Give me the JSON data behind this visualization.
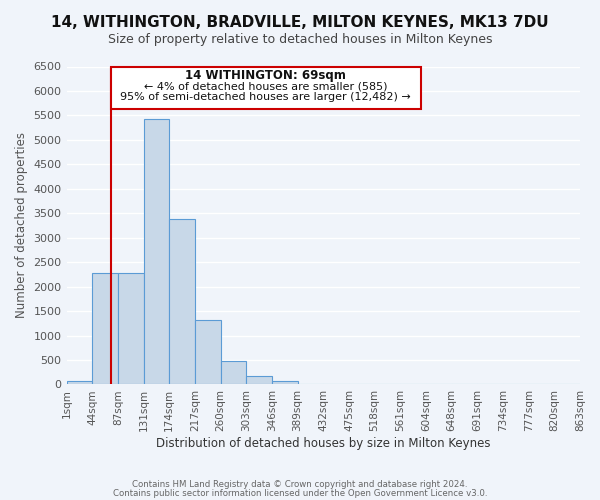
{
  "title": "14, WITHINGTON, BRADVILLE, MILTON KEYNES, MK13 7DU",
  "subtitle": "Size of property relative to detached houses in Milton Keynes",
  "xlabel": "Distribution of detached houses by size in Milton Keynes",
  "ylabel": "Number of detached properties",
  "bar_color": "#c8d8e8",
  "bar_edge_color": "#5b9bd5",
  "background_color": "#f0f4fa",
  "grid_color": "#ffffff",
  "annotation_box_color": "#ffffff",
  "annotation_border_color": "#cc0000",
  "vline_color": "#cc0000",
  "bin_labels": [
    "1sqm",
    "44sqm",
    "87sqm",
    "131sqm",
    "174sqm",
    "217sqm",
    "260sqm",
    "303sqm",
    "346sqm",
    "389sqm",
    "432sqm",
    "475sqm",
    "518sqm",
    "561sqm",
    "604sqm",
    "648sqm",
    "691sqm",
    "734sqm",
    "777sqm",
    "820sqm",
    "863sqm"
  ],
  "values": [
    70,
    2280,
    2280,
    5430,
    3380,
    1310,
    480,
    170,
    70,
    0,
    0,
    0,
    0,
    0,
    0,
    0,
    0,
    0,
    0,
    0
  ],
  "ylim": [
    0,
    6500
  ],
  "yticks": [
    0,
    500,
    1000,
    1500,
    2000,
    2500,
    3000,
    3500,
    4000,
    4500,
    5000,
    5500,
    6000,
    6500
  ],
  "vline_position": 1.72,
  "annotation_text_line1": "14 WITHINGTON: 69sqm",
  "annotation_text_line2": "← 4% of detached houses are smaller (585)",
  "annotation_text_line3": "95% of semi-detached houses are larger (12,482) →",
  "footer_line1": "Contains HM Land Registry data © Crown copyright and database right 2024.",
  "footer_line2": "Contains public sector information licensed under the Open Government Licence v3.0."
}
